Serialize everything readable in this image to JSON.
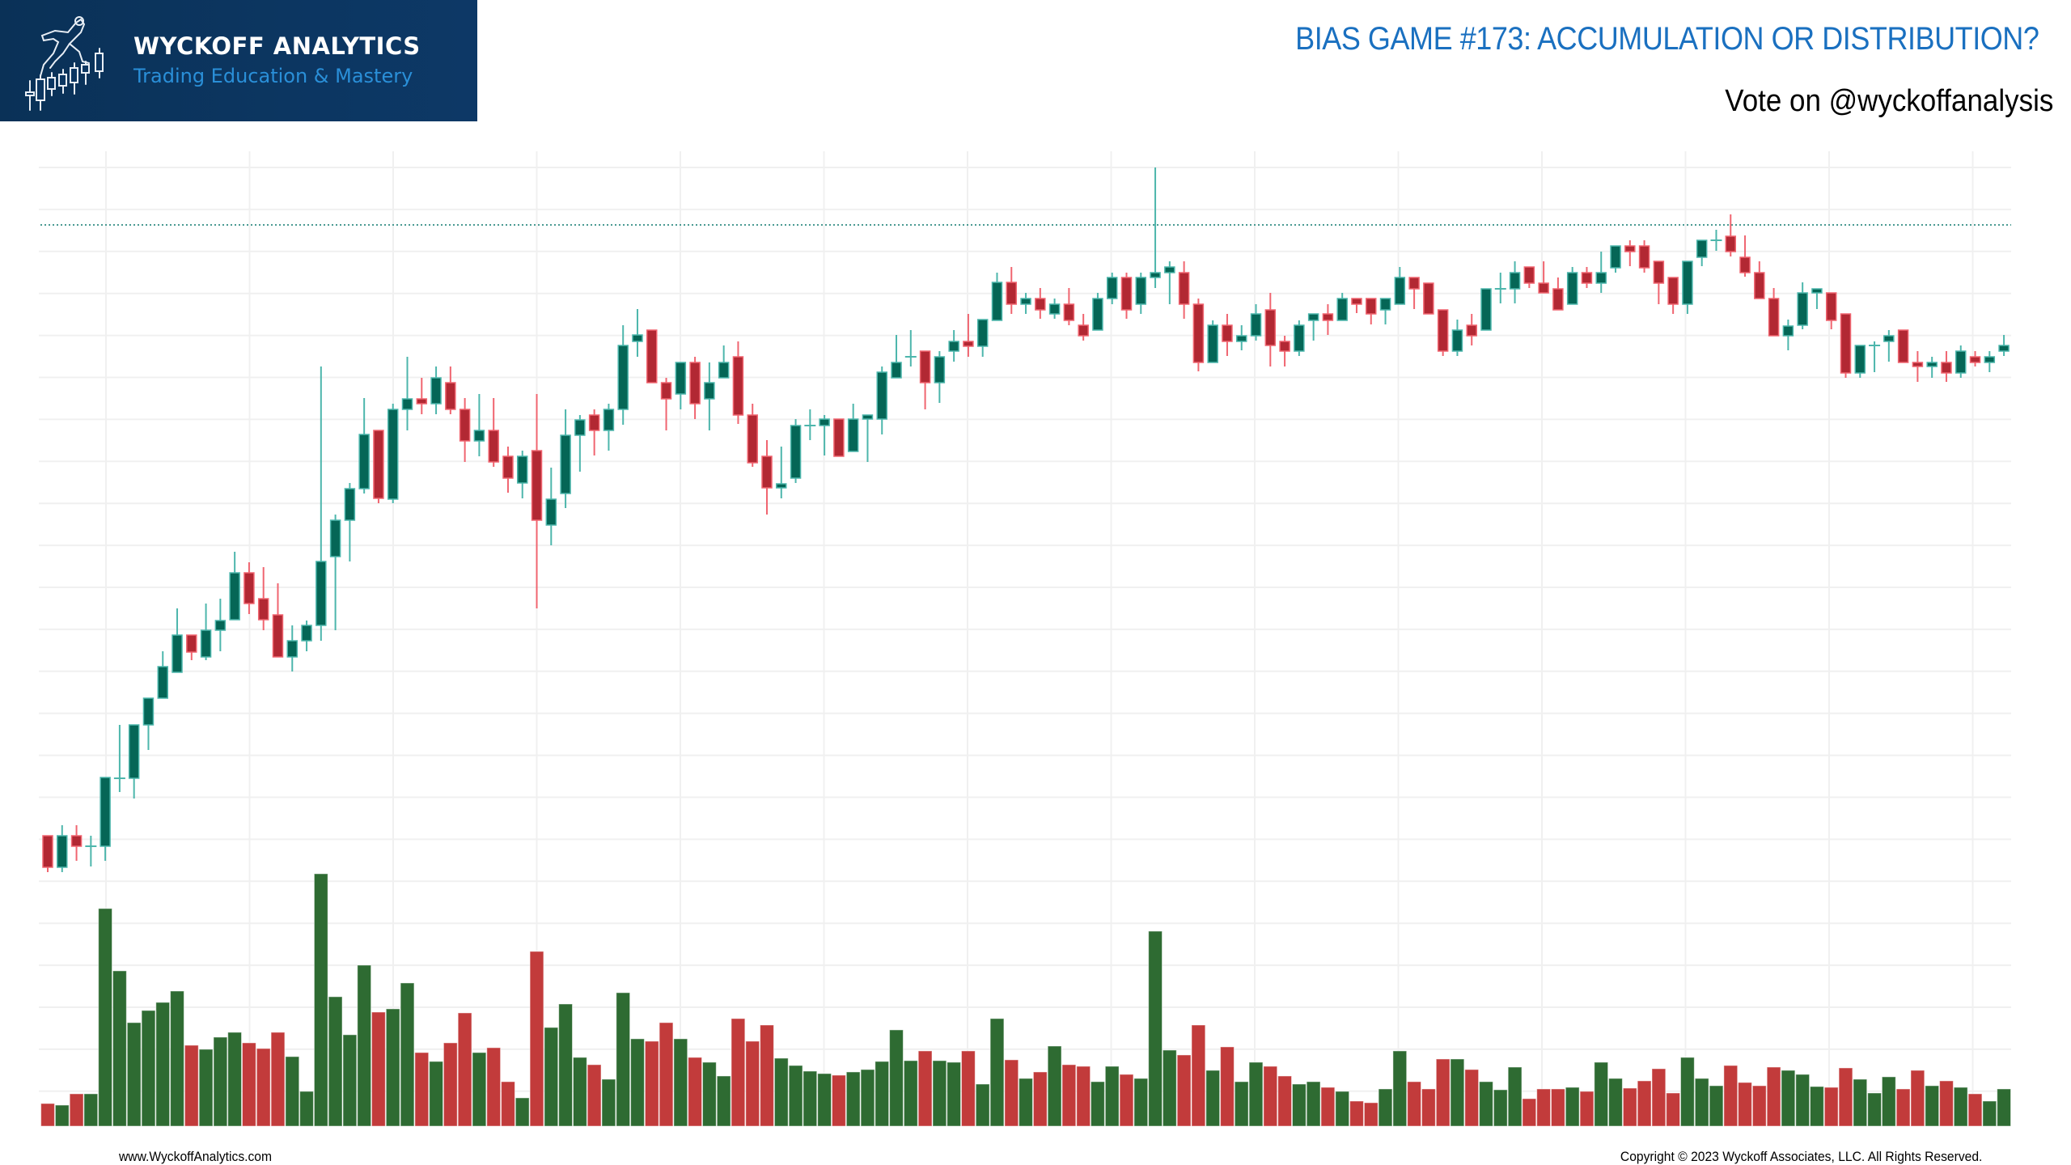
{
  "brand": {
    "name": "WYCKOFF ANALYTICS",
    "tagline": "Trading Education & Mastery",
    "icon": "runner-on-candlesticks-icon",
    "banner_color": "#0c3661",
    "tagline_color": "#2a8fd8"
  },
  "header": {
    "title": "BIAS GAME #173: ACCUMULATION OR DISTRIBUTION?",
    "title_color": "#1a70c0",
    "subtitle": "Vote on @wyckoffanalysis"
  },
  "footer": {
    "website": "www.WyckoffAnalytics.com",
    "copyright": "Copyright © 2023 Wyckoff Associates, LLC. All Rights Reserved."
  },
  "colors": {
    "up_body": "#056656",
    "up_border": "#4db6ac",
    "down_body": "#b22833",
    "down_border": "#f06570",
    "vol_up": "#2e6b32",
    "vol_down": "#c23b3b",
    "grid": "#f0f0f0",
    "ref_line": "#4a9a92"
  },
  "chart_data": {
    "type": "candlestick",
    "title": "BIAS GAME #173: ACCUMULATION OR DISTRIBUTION?",
    "xlabel": "",
    "ylabel": "",
    "price_units": "relative (axis labels hidden)",
    "grid": true,
    "legend": null,
    "reference_line": {
      "style": "dotted",
      "value": 82.2
    },
    "ylim": [
      0,
      100
    ],
    "candles": [
      [
        6.7,
        6.7,
        2.2,
        2.8
      ],
      [
        2.8,
        8.0,
        2.2,
        6.7
      ],
      [
        6.7,
        8.0,
        3.6,
        5.4
      ],
      [
        5.4,
        6.7,
        2.9,
        5.4
      ],
      [
        5.4,
        13.9,
        3.6,
        13.9
      ],
      [
        13.8,
        20.4,
        12.1,
        13.8
      ],
      [
        13.8,
        20.4,
        11.3,
        20.4
      ],
      [
        20.4,
        23.7,
        17.3,
        23.7
      ],
      [
        23.7,
        29.5,
        23.7,
        27.6
      ],
      [
        26.9,
        34.8,
        26.9,
        31.5
      ],
      [
        31.5,
        31.5,
        28.4,
        29.4
      ],
      [
        28.8,
        35.4,
        28.4,
        32.1
      ],
      [
        32.1,
        36.0,
        29.5,
        33.3
      ],
      [
        33.4,
        41.8,
        33.4,
        39.2
      ],
      [
        39.2,
        40.5,
        34.1,
        35.4
      ],
      [
        36.0,
        39.9,
        32.1,
        33.4
      ],
      [
        34.0,
        37.9,
        28.8,
        28.8
      ],
      [
        28.8,
        32.7,
        27.0,
        30.8
      ],
      [
        30.8,
        33.3,
        29.5,
        32.7
      ],
      [
        32.7,
        64.7,
        30.8,
        40.6
      ],
      [
        41.2,
        46.4,
        32.1,
        45.7
      ],
      [
        45.7,
        50.3,
        40.6,
        49.6
      ],
      [
        49.6,
        60.8,
        49.0,
        56.3
      ],
      [
        56.8,
        56.8,
        47.8,
        48.4
      ],
      [
        48.3,
        60.1,
        47.8,
        59.4
      ],
      [
        59.4,
        65.9,
        56.8,
        60.7
      ],
      [
        60.7,
        63.3,
        58.8,
        60.1
      ],
      [
        60.1,
        64.7,
        58.8,
        63.3
      ],
      [
        62.7,
        64.7,
        58.8,
        59.4
      ],
      [
        59.4,
        60.8,
        52.9,
        55.5
      ],
      [
        55.5,
        61.3,
        53.6,
        56.8
      ],
      [
        56.8,
        60.8,
        52.3,
        52.9
      ],
      [
        53.6,
        54.8,
        49.1,
        50.9
      ],
      [
        50.3,
        54.3,
        48.4,
        53.6
      ],
      [
        54.3,
        61.3,
        34.8,
        45.7
      ],
      [
        45.1,
        52.2,
        42.6,
        48.3
      ],
      [
        49.0,
        59.4,
        47.2,
        56.2
      ],
      [
        56.2,
        58.7,
        51.7,
        58.1
      ],
      [
        58.7,
        59.4,
        53.7,
        56.8
      ],
      [
        56.8,
        60.1,
        54.3,
        59.4
      ],
      [
        59.4,
        69.8,
        57.5,
        67.3
      ],
      [
        67.8,
        71.8,
        65.9,
        68.6
      ],
      [
        69.2,
        69.2,
        62.7,
        62.7
      ],
      [
        62.7,
        63.3,
        56.8,
        60.7
      ],
      [
        61.3,
        65.2,
        59.4,
        65.2
      ],
      [
        65.2,
        65.9,
        58.2,
        60.1
      ],
      [
        60.7,
        65.2,
        56.8,
        62.7
      ],
      [
        63.3,
        67.3,
        63.3,
        65.2
      ],
      [
        65.9,
        67.8,
        57.6,
        58.7
      ],
      [
        58.7,
        60.1,
        52.3,
        52.8
      ],
      [
        53.6,
        55.6,
        46.4,
        49.7
      ],
      [
        49.7,
        54.8,
        48.4,
        50.2
      ],
      [
        50.9,
        58.2,
        50.3,
        57.4
      ],
      [
        57.4,
        59.4,
        55.6,
        57.4
      ],
      [
        57.4,
        58.7,
        53.7,
        58.2
      ],
      [
        58.2,
        58.2,
        53.6,
        53.6
      ],
      [
        54.2,
        60.1,
        54.2,
        58.2
      ],
      [
        58.2,
        58.7,
        52.9,
        58.7
      ],
      [
        58.2,
        64.7,
        56.3,
        64.0
      ],
      [
        63.3,
        68.6,
        63.3,
        65.2
      ],
      [
        65.9,
        69.2,
        64.7,
        65.9
      ],
      [
        66.6,
        66.6,
        59.4,
        62.7
      ],
      [
        62.7,
        66.6,
        60.2,
        65.9
      ],
      [
        66.6,
        69.2,
        65.3,
        67.8
      ],
      [
        67.8,
        71.2,
        65.9,
        67.2
      ],
      [
        67.2,
        70.5,
        65.9,
        70.5
      ],
      [
        70.4,
        76.3,
        70.4,
        75.1
      ],
      [
        75.1,
        77.0,
        71.2,
        72.4
      ],
      [
        72.4,
        73.8,
        71.2,
        73.1
      ],
      [
        73.1,
        74.4,
        70.6,
        71.7
      ],
      [
        71.2,
        73.1,
        70.6,
        72.4
      ],
      [
        72.4,
        74.4,
        69.8,
        70.4
      ],
      [
        69.8,
        71.2,
        67.9,
        68.5
      ],
      [
        69.2,
        73.8,
        69.2,
        73.1
      ],
      [
        73.1,
        76.3,
        72.4,
        75.7
      ],
      [
        75.7,
        76.3,
        70.6,
        71.7
      ],
      [
        72.4,
        76.3,
        71.2,
        75.7
      ],
      [
        75.7,
        89.3,
        74.4,
        76.3
      ],
      [
        76.3,
        77.7,
        72.4,
        77.0
      ],
      [
        76.3,
        77.7,
        70.6,
        72.4
      ],
      [
        72.4,
        73.1,
        64.1,
        65.2
      ],
      [
        65.2,
        70.4,
        65.2,
        69.8
      ],
      [
        69.8,
        71.2,
        66.0,
        67.8
      ],
      [
        67.8,
        69.8,
        66.7,
        68.5
      ],
      [
        68.5,
        72.4,
        67.9,
        71.2
      ],
      [
        71.7,
        73.8,
        64.7,
        67.3
      ],
      [
        67.8,
        68.5,
        64.7,
        66.6
      ],
      [
        66.6,
        70.4,
        66.0,
        69.8
      ],
      [
        70.4,
        71.2,
        67.9,
        71.2
      ],
      [
        71.2,
        72.4,
        68.6,
        70.4
      ],
      [
        70.4,
        73.8,
        70.4,
        73.1
      ],
      [
        73.1,
        73.1,
        71.3,
        72.4
      ],
      [
        73.1,
        73.1,
        69.9,
        71.2
      ],
      [
        71.7,
        73.1,
        69.9,
        73.1
      ],
      [
        72.4,
        77.0,
        72.4,
        75.7
      ],
      [
        75.7,
        75.7,
        71.8,
        74.3
      ],
      [
        75.0,
        75.0,
        71.2,
        71.2
      ],
      [
        71.7,
        71.7,
        66.0,
        66.6
      ],
      [
        66.6,
        70.5,
        66.0,
        69.2
      ],
      [
        69.8,
        71.2,
        67.3,
        68.5
      ],
      [
        69.2,
        74.3,
        69.2,
        74.3
      ],
      [
        74.3,
        76.3,
        72.5,
        74.3
      ],
      [
        74.3,
        77.7,
        72.5,
        76.3
      ],
      [
        77.0,
        77.0,
        74.4,
        75.0
      ],
      [
        75.0,
        77.7,
        73.8,
        73.8
      ],
      [
        74.3,
        75.7,
        71.7,
        71.7
      ],
      [
        72.4,
        77.0,
        72.4,
        76.3
      ],
      [
        76.3,
        77.0,
        74.4,
        75.0
      ],
      [
        75.0,
        78.9,
        73.8,
        76.3
      ],
      [
        76.9,
        79.6,
        76.3,
        79.6
      ],
      [
        79.6,
        80.3,
        77.1,
        78.9
      ],
      [
        79.6,
        80.3,
        76.3,
        76.9
      ],
      [
        77.7,
        77.7,
        72.4,
        75.0
      ],
      [
        75.7,
        75.7,
        71.2,
        72.4
      ],
      [
        72.4,
        77.7,
        71.2,
        77.7
      ],
      [
        78.2,
        80.3,
        77.1,
        80.3
      ],
      [
        80.3,
        81.6,
        79.0,
        80.3
      ],
      [
        80.8,
        83.5,
        78.3,
        78.9
      ],
      [
        78.2,
        80.9,
        75.8,
        76.3
      ],
      [
        76.3,
        77.7,
        73.1,
        73.1
      ],
      [
        73.1,
        74.4,
        68.5,
        68.5
      ],
      [
        68.5,
        70.5,
        66.7,
        69.7
      ],
      [
        69.8,
        75.1,
        69.3,
        73.8
      ],
      [
        73.8,
        74.3,
        71.8,
        74.3
      ],
      [
        73.8,
        73.8,
        69.3,
        70.4
      ],
      [
        71.2,
        71.2,
        63.3,
        63.9
      ],
      [
        63.9,
        67.3,
        63.3,
        67.3
      ],
      [
        67.3,
        67.8,
        64.0,
        67.3
      ],
      [
        67.8,
        69.2,
        65.3,
        68.5
      ],
      [
        69.2,
        69.2,
        65.2,
        65.2
      ],
      [
        65.2,
        66.6,
        62.8,
        64.7
      ],
      [
        64.7,
        65.9,
        63.3,
        65.2
      ],
      [
        65.2,
        66.6,
        62.8,
        63.9
      ],
      [
        63.9,
        67.3,
        63.3,
        66.6
      ],
      [
        65.9,
        66.6,
        64.7,
        65.2
      ],
      [
        65.2,
        66.6,
        64.0,
        65.9
      ],
      [
        66.6,
        68.6,
        66.0,
        67.3
      ]
    ],
    "candle_format": [
      "open",
      "high",
      "low",
      "close"
    ],
    "volume": [
      2.8,
      2.6,
      4.0,
      4.0,
      26.9,
      19.2,
      12.8,
      14.3,
      15.3,
      16.7,
      10.0,
      9.5,
      11.0,
      11.6,
      10.3,
      9.6,
      11.6,
      8.6,
      4.3,
      31.2,
      16.0,
      11.3,
      19.9,
      14.1,
      14.5,
      17.7,
      9.1,
      8.0,
      10.3,
      14.0,
      9.1,
      9.7,
      5.5,
      3.5,
      21.6,
      12.2,
      15.1,
      8.5,
      7.6,
      5.8,
      16.5,
      10.8,
      10.5,
      12.8,
      10.8,
      8.5,
      7.9,
      6.2,
      13.3,
      10.5,
      12.5,
      8.4,
      7.5,
      6.8,
      6.5,
      6.3,
      6.7,
      7.0,
      8.0,
      11.9,
      8.1,
      9.3,
      8.1,
      7.9,
      9.3,
      5.2,
      13.3,
      8.2,
      5.9,
      6.7,
      9.9,
      7.6,
      7.4,
      5.5,
      7.4,
      6.4,
      5.9,
      24.1,
      9.4,
      8.8,
      12.5,
      6.9,
      9.8,
      5.5,
      7.9,
      7.4,
      6.2,
      5.2,
      5.5,
      4.8,
      4.3,
      3.1,
      2.9,
      4.6,
      9.3,
      5.5,
      4.6,
      8.3,
      8.3,
      7.0,
      5.5,
      4.5,
      7.3,
      3.4,
      4.6,
      4.6,
      4.8,
      4.3,
      7.9,
      5.9,
      4.7,
      5.6,
      7.1,
      4.1,
      8.5,
      5.9,
      5.0,
      7.5,
      5.4,
      5.0,
      7.3,
      6.9,
      6.4,
      4.9,
      4.8,
      7.2,
      5.8,
      4.1,
      6.1,
      4.6,
      6.9,
      5.0,
      5.6,
      4.8,
      4.0,
      3.1,
      4.6
    ]
  }
}
